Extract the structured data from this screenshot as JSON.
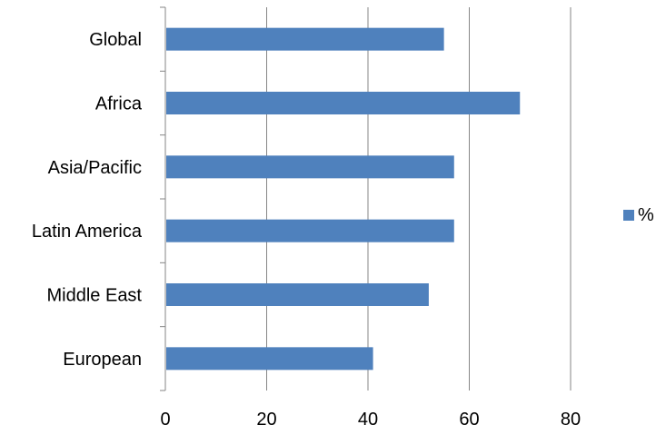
{
  "chart_data": {
    "type": "bar",
    "orientation": "horizontal",
    "categories": [
      "Global",
      "Africa",
      "Asia/Pacific",
      "Latin America",
      "Middle East",
      "European"
    ],
    "series": [
      {
        "name": "%",
        "values": [
          55,
          70,
          57,
          57,
          52,
          41
        ],
        "color": "#4f81bd"
      }
    ],
    "title": "",
    "xlabel": "",
    "ylabel": "",
    "xlim": [
      0,
      80
    ],
    "xticks": [
      0,
      20,
      40,
      60,
      80
    ],
    "grid": "vertical",
    "legend_position": "right"
  }
}
